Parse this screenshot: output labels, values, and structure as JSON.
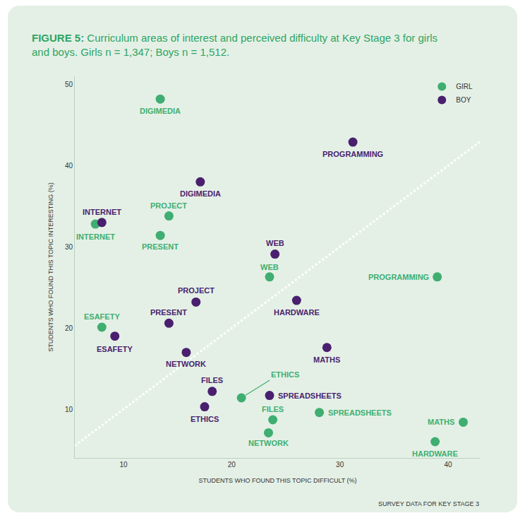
{
  "chart_data": {
    "type": "scatter",
    "title": "FIGURE 5: Curriculum areas of interest and perceived difficulty at Key Stage 3 for girls and boys. Girls n = 1,347; Boys n = 1,512.",
    "x_label": "STUDENTS WHO FOUND THIS TOPIC DIFFICULT (%)",
    "y_label": "STUDENTS WHO FOUND THIS TOPIC INTERESTING (%)",
    "source": "SURVEY DATA FOR KEY STAGE 3",
    "xlim": [
      5.5,
      43
    ],
    "ylim": [
      4,
      51
    ],
    "xticks": [
      10,
      20,
      30,
      40
    ],
    "yticks": [
      10,
      20,
      30,
      40,
      50
    ],
    "grid": false,
    "legend": "top right",
    "series": [
      {
        "name": "GIRL",
        "color": "#3fae70",
        "labels": [
          "DIGIMEDIA",
          "INTERNET",
          "PROJECT",
          "PRESENT",
          "WEB",
          "PROGRAMMING",
          "ESAFETY",
          "ETHICS",
          "FILES",
          "NETWORK",
          "SPREADSHEETS",
          "MATHS",
          "HARDWARE"
        ],
        "x": [
          13.4,
          7.4,
          14.2,
          13.4,
          23.5,
          39.0,
          8.0,
          20.9,
          23.8,
          23.4,
          28.1,
          41.4,
          38.8
        ],
        "values": [
          48.2,
          32.8,
          33.8,
          31.4,
          26.3,
          26.3,
          20.1,
          11.4,
          8.7,
          7.1,
          9.6,
          8.4,
          6.0
        ]
      },
      {
        "name": "BOY",
        "color": "#4a1f6e",
        "labels": [
          "PROGRAMMING",
          "DIGIMEDIA",
          "INTERNET",
          "WEB",
          "HARDWARE",
          "PROJECT",
          "PRESENT",
          "ESAFETY",
          "MATHS",
          "NETWORK",
          "FILES",
          "SPREADSHEETS",
          "ETHICS"
        ],
        "x": [
          31.2,
          17.1,
          8.0,
          24.0,
          26.0,
          16.7,
          14.2,
          9.2,
          28.8,
          15.8,
          18.2,
          23.5,
          17.5
        ],
        "values": [
          42.9,
          38.0,
          33.0,
          29.1,
          23.4,
          23.2,
          20.6,
          19.0,
          17.6,
          17.0,
          12.2,
          11.7,
          10.3
        ]
      }
    ]
  }
}
